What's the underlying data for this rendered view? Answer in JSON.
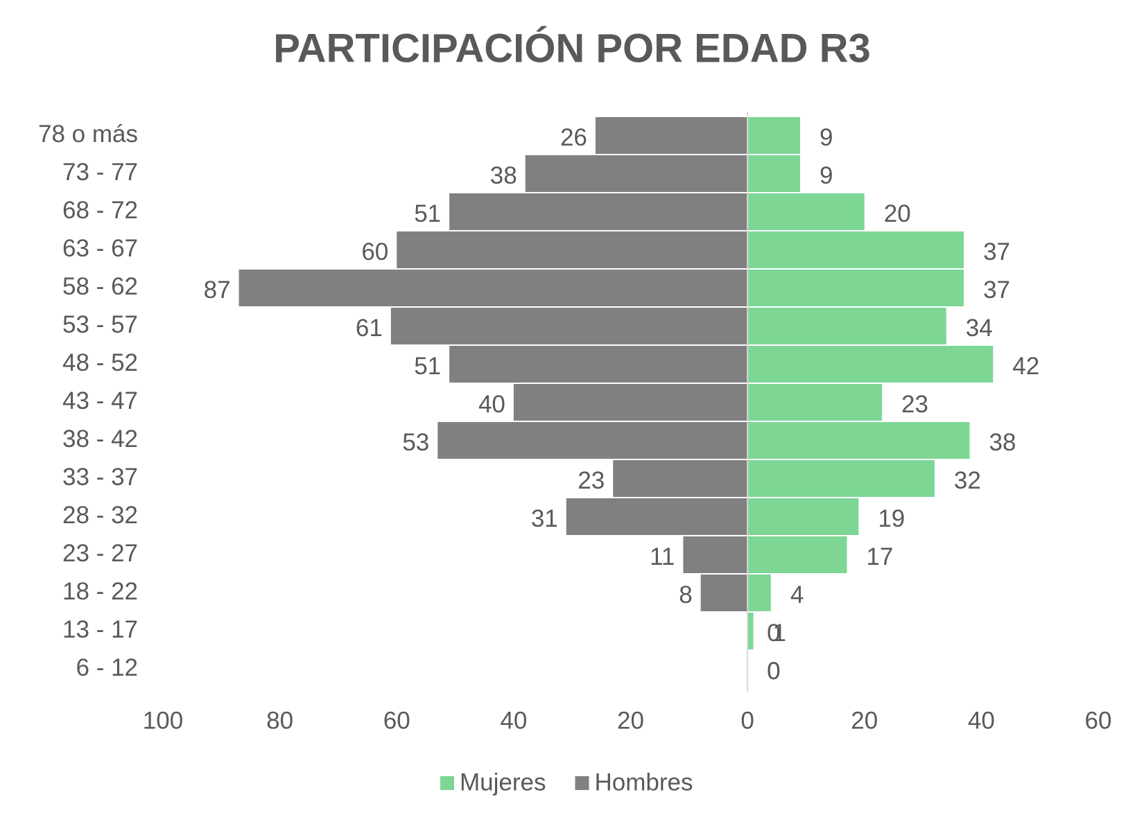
{
  "chart_data": {
    "type": "pyramid",
    "title": "PARTICIPACIÓN POR EDAD R3",
    "categories": [
      "78 o más",
      "73 - 77",
      "68 - 72",
      "63 - 67",
      "58 - 62",
      "53 - 57",
      "48 - 52",
      "43 - 47",
      "38 - 42",
      "33 - 37",
      "28 - 32",
      "23 - 27",
      "18 - 22",
      "13 - 17",
      "6 - 12"
    ],
    "series": [
      {
        "name": "Mujeres",
        "color": "#7dd694",
        "values": [
          9,
          9,
          20,
          37,
          37,
          34,
          42,
          23,
          38,
          32,
          19,
          17,
          4,
          1,
          0
        ]
      },
      {
        "name": "Hombres",
        "color": "#808080",
        "values": [
          -26,
          -38,
          -51,
          -60,
          -87,
          -61,
          -51,
          -40,
          -53,
          -23,
          -31,
          -11,
          -8,
          0,
          0
        ],
        "value_labels": [
          "26",
          "38",
          "51",
          "60",
          "87",
          "61",
          "51",
          "40",
          "53",
          "23",
          "31",
          "11",
          "8",
          "0",
          "0"
        ]
      }
    ],
    "xlim": [
      -100,
      60
    ],
    "xticks": [
      {
        "value": -100,
        "label": "100"
      },
      {
        "value": -80,
        "label": "80"
      },
      {
        "value": -60,
        "label": "60"
      },
      {
        "value": -40,
        "label": "40"
      },
      {
        "value": -20,
        "label": "20"
      },
      0,
      20,
      40,
      60
    ],
    "legend": "bottom"
  }
}
